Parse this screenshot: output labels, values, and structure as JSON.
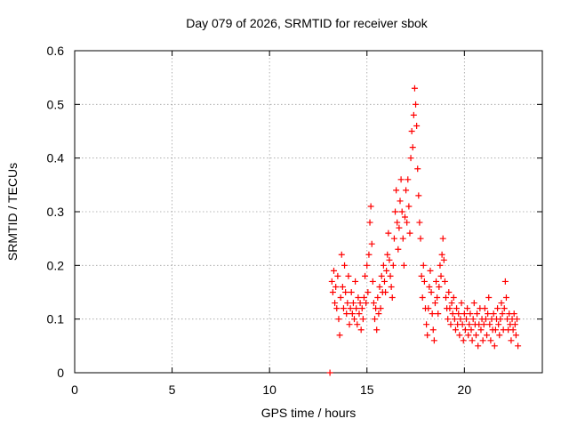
{
  "chart_data": {
    "type": "scatter",
    "title": "Day 079 of 2026, SRMTID for receiver sbok",
    "xlabel": "GPS time / hours",
    "ylabel": "SRMTID / TECUs",
    "xlim": [
      0,
      24
    ],
    "ylim": [
      0,
      0.6
    ],
    "xticks": [
      0,
      5,
      10,
      15,
      20
    ],
    "yticks": [
      0,
      0.1,
      0.2,
      0.3,
      0.4,
      0.5,
      0.6
    ],
    "grid": true,
    "marker": "+",
    "color": "#ff0000",
    "series": [
      {
        "name": "SRMTID",
        "points": [
          [
            13.1,
            0.0
          ],
          [
            13.2,
            0.17
          ],
          [
            13.25,
            0.15
          ],
          [
            13.3,
            0.19
          ],
          [
            13.35,
            0.13
          ],
          [
            13.4,
            0.16
          ],
          [
            13.45,
            0.12
          ],
          [
            13.5,
            0.18
          ],
          [
            13.55,
            0.1
          ],
          [
            13.6,
            0.07
          ],
          [
            13.65,
            0.14
          ],
          [
            13.7,
            0.22
          ],
          [
            13.75,
            0.16
          ],
          [
            13.8,
            0.12
          ],
          [
            13.85,
            0.2
          ],
          [
            13.9,
            0.15
          ],
          [
            13.95,
            0.11
          ],
          [
            14.0,
            0.13
          ],
          [
            14.05,
            0.18
          ],
          [
            14.1,
            0.09
          ],
          [
            14.15,
            0.12
          ],
          [
            14.2,
            0.15
          ],
          [
            14.25,
            0.11
          ],
          [
            14.3,
            0.13
          ],
          [
            14.35,
            0.1
          ],
          [
            14.4,
            0.17
          ],
          [
            14.45,
            0.12
          ],
          [
            14.5,
            0.09
          ],
          [
            14.55,
            0.14
          ],
          [
            14.6,
            0.11
          ],
          [
            14.65,
            0.13
          ],
          [
            14.7,
            0.08
          ],
          [
            14.75,
            0.12
          ],
          [
            14.8,
            0.1
          ],
          [
            14.85,
            0.14
          ],
          [
            14.9,
            0.18
          ],
          [
            14.95,
            0.13
          ],
          [
            15.0,
            0.2
          ],
          [
            15.05,
            0.15
          ],
          [
            15.1,
            0.22
          ],
          [
            15.15,
            0.28
          ],
          [
            15.2,
            0.31
          ],
          [
            15.25,
            0.24
          ],
          [
            15.3,
            0.17
          ],
          [
            15.35,
            0.13
          ],
          [
            15.4,
            0.1
          ],
          [
            15.45,
            0.12
          ],
          [
            15.5,
            0.08
          ],
          [
            15.55,
            0.14
          ],
          [
            15.6,
            0.11
          ],
          [
            15.65,
            0.16
          ],
          [
            15.7,
            0.12
          ],
          [
            15.75,
            0.18
          ],
          [
            15.8,
            0.15
          ],
          [
            15.85,
            0.2
          ],
          [
            15.9,
            0.17
          ],
          [
            15.95,
            0.15
          ],
          [
            16.0,
            0.19
          ],
          [
            16.05,
            0.22
          ],
          [
            16.1,
            0.26
          ],
          [
            16.15,
            0.21
          ],
          [
            16.2,
            0.18
          ],
          [
            16.25,
            0.16
          ],
          [
            16.3,
            0.14
          ],
          [
            16.35,
            0.2
          ],
          [
            16.4,
            0.25
          ],
          [
            16.45,
            0.3
          ],
          [
            16.5,
            0.34
          ],
          [
            16.55,
            0.28
          ],
          [
            16.6,
            0.23
          ],
          [
            16.65,
            0.27
          ],
          [
            16.7,
            0.32
          ],
          [
            16.75,
            0.36
          ],
          [
            16.8,
            0.3
          ],
          [
            16.85,
            0.25
          ],
          [
            16.9,
            0.2
          ],
          [
            16.95,
            0.29
          ],
          [
            17.0,
            0.34
          ],
          [
            17.05,
            0.28
          ],
          [
            17.1,
            0.36
          ],
          [
            17.15,
            0.31
          ],
          [
            17.2,
            0.26
          ],
          [
            17.25,
            0.4
          ],
          [
            17.3,
            0.45
          ],
          [
            17.35,
            0.42
          ],
          [
            17.4,
            0.48
          ],
          [
            17.45,
            0.53
          ],
          [
            17.5,
            0.5
          ],
          [
            17.55,
            0.46
          ],
          [
            17.6,
            0.38
          ],
          [
            17.65,
            0.33
          ],
          [
            17.7,
            0.28
          ],
          [
            17.75,
            0.25
          ],
          [
            17.8,
            0.18
          ],
          [
            17.85,
            0.14
          ],
          [
            17.9,
            0.2
          ],
          [
            17.95,
            0.17
          ],
          [
            18.0,
            0.12
          ],
          [
            18.05,
            0.09
          ],
          [
            18.1,
            0.07
          ],
          [
            18.15,
            0.12
          ],
          [
            18.2,
            0.16
          ],
          [
            18.25,
            0.19
          ],
          [
            18.3,
            0.15
          ],
          [
            18.35,
            0.11
          ],
          [
            18.4,
            0.08
          ],
          [
            18.45,
            0.06
          ],
          [
            18.5,
            0.13
          ],
          [
            18.55,
            0.17
          ],
          [
            18.6,
            0.14
          ],
          [
            18.65,
            0.11
          ],
          [
            18.7,
            0.16
          ],
          [
            18.75,
            0.2
          ],
          [
            18.8,
            0.18
          ],
          [
            18.85,
            0.22
          ],
          [
            18.9,
            0.25
          ],
          [
            18.95,
            0.21
          ],
          [
            19.0,
            0.17
          ],
          [
            19.05,
            0.14
          ],
          [
            19.1,
            0.12
          ],
          [
            19.15,
            0.1
          ],
          [
            19.2,
            0.15
          ],
          [
            19.25,
            0.12
          ],
          [
            19.3,
            0.09
          ],
          [
            19.35,
            0.13
          ],
          [
            19.4,
            0.11
          ],
          [
            19.45,
            0.14
          ],
          [
            19.5,
            0.1
          ],
          [
            19.55,
            0.08
          ],
          [
            19.6,
            0.12
          ],
          [
            19.65,
            0.09
          ],
          [
            19.7,
            0.11
          ],
          [
            19.75,
            0.07
          ],
          [
            19.8,
            0.1
          ],
          [
            19.85,
            0.13
          ],
          [
            19.9,
            0.09
          ],
          [
            19.95,
            0.06
          ],
          [
            20.0,
            0.11
          ],
          [
            20.05,
            0.08
          ],
          [
            20.1,
            0.1
          ],
          [
            20.15,
            0.12
          ],
          [
            20.2,
            0.07
          ],
          [
            20.25,
            0.09
          ],
          [
            20.3,
            0.11
          ],
          [
            20.35,
            0.08
          ],
          [
            20.4,
            0.06
          ],
          [
            20.45,
            0.1
          ],
          [
            20.5,
            0.13
          ],
          [
            20.55,
            0.09
          ],
          [
            20.6,
            0.07
          ],
          [
            20.65,
            0.11
          ],
          [
            20.7,
            0.05
          ],
          [
            20.75,
            0.09
          ],
          [
            20.8,
            0.12
          ],
          [
            20.85,
            0.08
          ],
          [
            20.9,
            0.1
          ],
          [
            20.95,
            0.06
          ],
          [
            21.0,
            0.09
          ],
          [
            21.05,
            0.12
          ],
          [
            21.1,
            0.1
          ],
          [
            21.15,
            0.07
          ],
          [
            21.2,
            0.11
          ],
          [
            21.25,
            0.14
          ],
          [
            21.3,
            0.09
          ],
          [
            21.35,
            0.06
          ],
          [
            21.4,
            0.1
          ],
          [
            21.45,
            0.08
          ],
          [
            21.5,
            0.11
          ],
          [
            21.55,
            0.05
          ],
          [
            21.6,
            0.08
          ],
          [
            21.65,
            0.1
          ],
          [
            21.7,
            0.12
          ],
          [
            21.75,
            0.09
          ],
          [
            21.8,
            0.07
          ],
          [
            21.85,
            0.1
          ],
          [
            21.9,
            0.13
          ],
          [
            21.95,
            0.11
          ],
          [
            22.0,
            0.08
          ],
          [
            22.05,
            0.12
          ],
          [
            22.1,
            0.17
          ],
          [
            22.15,
            0.14
          ],
          [
            22.2,
            0.1
          ],
          [
            22.25,
            0.08
          ],
          [
            22.3,
            0.11
          ],
          [
            22.35,
            0.09
          ],
          [
            22.4,
            0.06
          ],
          [
            22.45,
            0.1
          ],
          [
            22.5,
            0.08
          ],
          [
            22.55,
            0.11
          ],
          [
            22.6,
            0.09
          ],
          [
            22.65,
            0.07
          ],
          [
            22.7,
            0.1
          ],
          [
            22.75,
            0.05
          ]
        ]
      }
    ]
  }
}
